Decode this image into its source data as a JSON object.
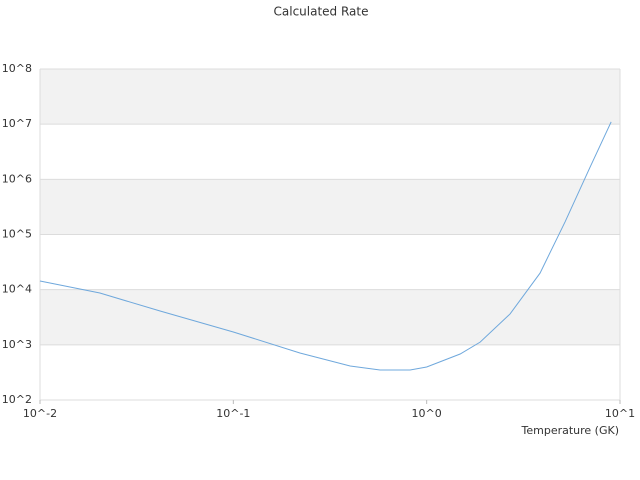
{
  "chart_data": {
    "type": "line",
    "title": "Calculated Rate",
    "xlabel": "Temperature (GK)",
    "log_x": true,
    "log_y": true,
    "grid": true,
    "bands": true,
    "xlim": [
      0.01,
      10
    ],
    "ylim": [
      100,
      100000000
    ],
    "xticks": [
      {
        "value": 0.01,
        "label": "10^-2"
      },
      {
        "value": 0.1,
        "label": "10^-1"
      },
      {
        "value": 1,
        "label": "10^0"
      },
      {
        "value": 10,
        "label": "10^1"
      }
    ],
    "yticks": [
      {
        "value": 100,
        "label": "10^2"
      },
      {
        "value": 1000,
        "label": "10^3"
      },
      {
        "value": 10000,
        "label": "10^4"
      },
      {
        "value": 100000,
        "label": "10^5"
      },
      {
        "value": 1000000,
        "label": "10^6"
      },
      {
        "value": 10000000,
        "label": "10^7"
      },
      {
        "value": 100000000,
        "label": "10^8"
      }
    ],
    "x": [
      0.01,
      0.0204,
      0.0418,
      0.1,
      0.221,
      0.402,
      0.574,
      0.821,
      1,
      1.49,
      1.89,
      2.7,
      3.86,
      5.2,
      7.0,
      9.0
    ],
    "series": [
      {
        "color": "#6fa8dc",
        "values": [
          14350,
          8700,
          4100,
          1710,
          711,
          413,
          350,
          350,
          396,
          682,
          1120,
          3630,
          20000,
          170000,
          1660000,
          11000000
        ]
      }
    ]
  }
}
